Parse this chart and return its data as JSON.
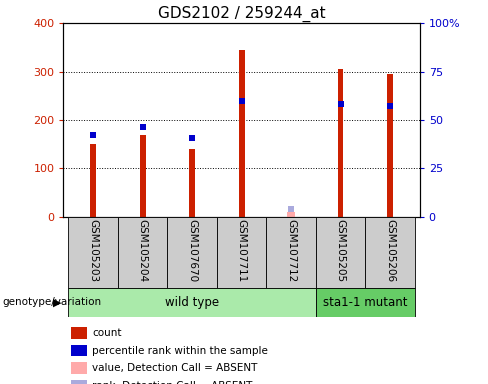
{
  "title": "GDS2102 / 259244_at",
  "sample_labels": [
    "GSM105203",
    "GSM105204",
    "GSM107670",
    "GSM107711",
    "GSM107712",
    "GSM105205",
    "GSM105206"
  ],
  "red_bar_values": [
    150,
    170,
    140,
    345,
    0,
    305,
    295
  ],
  "blue_dot_values": [
    42.5,
    46.5,
    40.5,
    60.0,
    0,
    58.0,
    57.0
  ],
  "absent_bar_values": [
    0,
    0,
    0,
    0,
    10,
    0,
    0
  ],
  "absent_rank_values": [
    0,
    0,
    0,
    0,
    4.0,
    0,
    0
  ],
  "ylim_left": [
    0,
    400
  ],
  "ylim_right": [
    0,
    100
  ],
  "yticks_left": [
    0,
    100,
    200,
    300,
    400
  ],
  "ytick_labels_left": [
    "0",
    "100",
    "200",
    "300",
    "400"
  ],
  "yticks_right": [
    0,
    25,
    50,
    75,
    100
  ],
  "ytick_labels_right": [
    "0",
    "25",
    "50",
    "75",
    "100%"
  ],
  "wild_type_count": 5,
  "mutant_count": 2,
  "wild_type_label": "wild type",
  "mutant_label": "sta1-1 mutant",
  "genotype_label": "genotype/variation",
  "legend_labels": [
    "count",
    "percentile rank within the sample",
    "value, Detection Call = ABSENT",
    "rank, Detection Call = ABSENT"
  ],
  "bar_color_red": "#cc2000",
  "bar_color_blue": "#0000cc",
  "bar_color_absent_red": "#ffaaaa",
  "bar_color_absent_blue": "#aaaadd",
  "plot_bg": "#ffffff",
  "axis_label_bg": "#cccccc",
  "wt_bg": "#aaeaaa",
  "mut_bg": "#66cc66",
  "title_fontsize": 11,
  "tick_fontsize": 8,
  "bar_width": 0.12,
  "blue_marker_size": 5
}
